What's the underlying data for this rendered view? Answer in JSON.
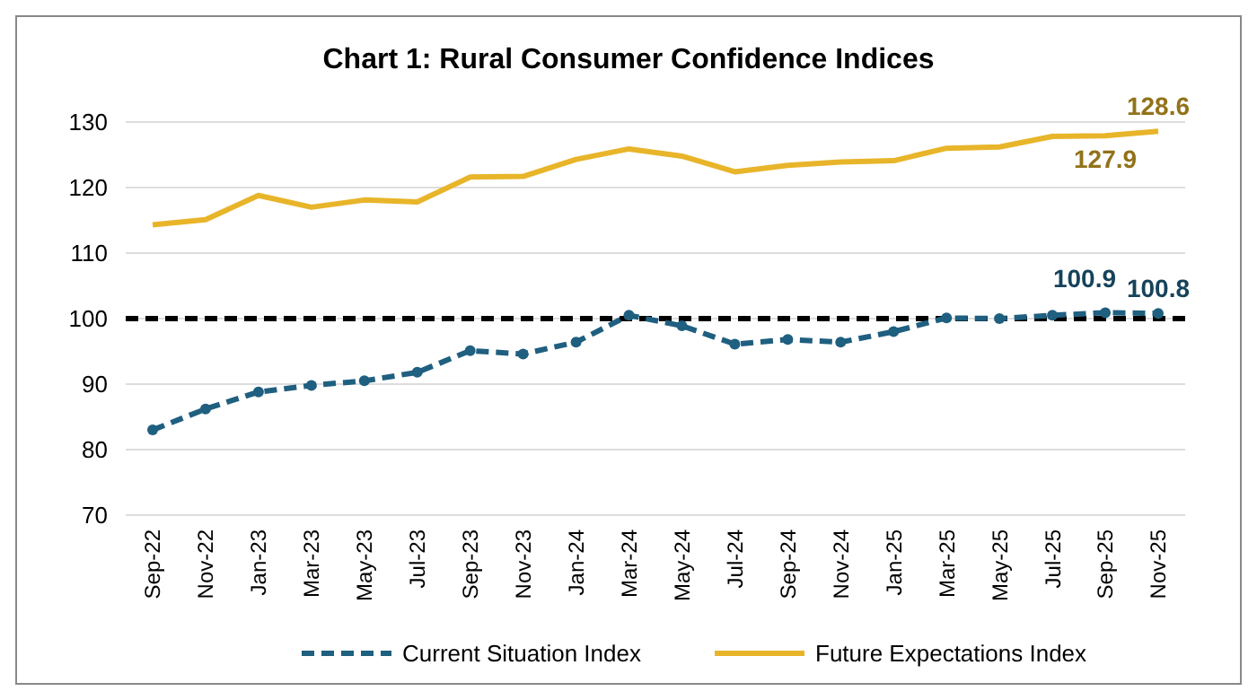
{
  "chart_data": {
    "type": "line",
    "title": "Chart 1: Rural Consumer Confidence Indices",
    "categories": [
      "Sep-22",
      "Nov-22",
      "Jan-23",
      "Mar-23",
      "May-23",
      "Jul-23",
      "Sep-23",
      "Nov-23",
      "Jan-24",
      "Mar-24",
      "May-24",
      "Jul-24",
      "Sep-24",
      "Nov-24",
      "Jan-25",
      "Mar-25",
      "May-25",
      "Jul-25",
      "Sep-25",
      "Nov-25"
    ],
    "series": [
      {
        "name": "Current Situation Index",
        "color": "#1f5f80",
        "line_style": "dashed",
        "marker": "circle",
        "values": [
          83,
          86.2,
          88.8,
          89.8,
          90.5,
          91.8,
          95.1,
          94.6,
          96.4,
          100.5,
          98.9,
          96.1,
          96.8,
          96.4,
          98,
          100.1,
          100,
          100.5,
          100.9,
          100.8
        ],
        "value_labels": [
          null,
          null,
          null,
          null,
          null,
          null,
          null,
          null,
          null,
          null,
          null,
          null,
          null,
          null,
          null,
          null,
          null,
          null,
          "100.9",
          "100.8"
        ]
      },
      {
        "name": "Future Expectations Index",
        "color": "#e8b52a",
        "line_style": "solid",
        "marker": "none",
        "values": [
          114.3,
          115.1,
          118.8,
          117,
          118.1,
          117.8,
          121.6,
          121.7,
          124.3,
          125.9,
          124.8,
          122.4,
          123.4,
          123.9,
          124.1,
          126,
          126.2,
          127.8,
          127.9,
          128.6
        ],
        "value_labels": [
          null,
          null,
          null,
          null,
          null,
          null,
          null,
          null,
          null,
          null,
          null,
          null,
          null,
          null,
          null,
          null,
          null,
          null,
          "127.9",
          "128.6"
        ]
      }
    ],
    "ylim": [
      70,
      130
    ],
    "yticks": [
      70,
      80,
      90,
      100,
      110,
      120,
      130
    ],
    "grid": "y",
    "legend": "bottom",
    "ref_lines": [
      {
        "axis": "y",
        "value": 100,
        "color": "#000000",
        "line_style": "dashed"
      }
    ]
  }
}
